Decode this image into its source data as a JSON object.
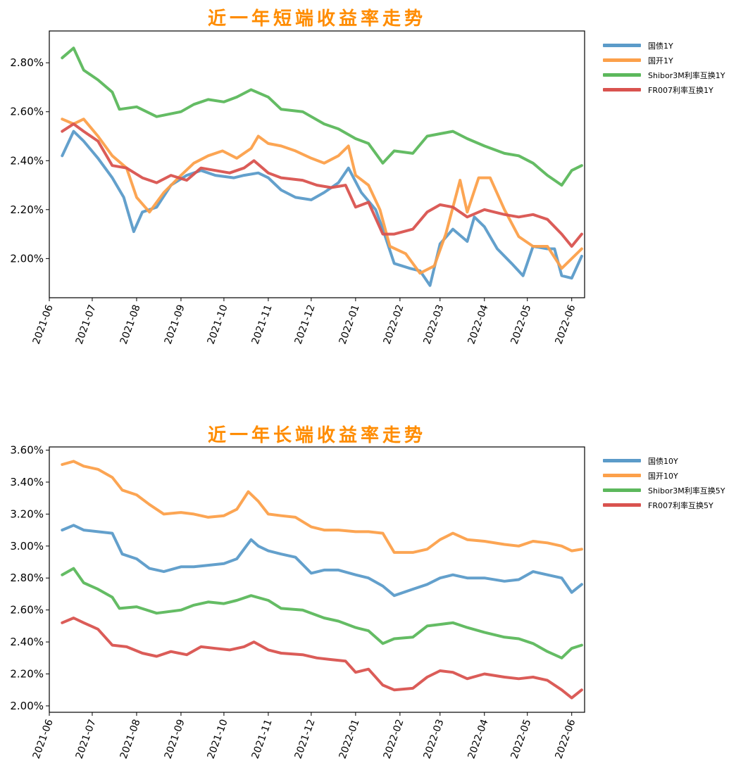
{
  "chart_data": [
    {
      "type": "line",
      "title": "近一年短端收益率走势",
      "x_tick_labels": [
        "2021-06",
        "2021-07",
        "2021-08",
        "2021-09",
        "2021-10",
        "2021-11",
        "2021-12",
        "2022-01",
        "2022-02",
        "2022-03",
        "2022-04",
        "2022-05",
        "2022-06"
      ],
      "x_range": [
        "2021-06-01",
        "2022-06-10"
      ],
      "y_tick_labels": [
        "2.00%",
        "2.20%",
        "2.40%",
        "2.60%",
        "2.80%"
      ],
      "y_ticks": [
        2.0,
        2.2,
        2.4,
        2.6,
        2.8
      ],
      "ylim": [
        1.84,
        2.93
      ],
      "legend_position": "right-top",
      "series": [
        {
          "name": "国债1Y",
          "color": "#5b9bc9",
          "x": [
            "2021-06-10",
            "2021-06-18",
            "2021-06-25",
            "2021-07-05",
            "2021-07-15",
            "2021-07-23",
            "2021-07-30",
            "2021-08-05",
            "2021-08-15",
            "2021-08-25",
            "2021-09-05",
            "2021-09-15",
            "2021-09-25",
            "2021-10-08",
            "2021-10-15",
            "2021-10-25",
            "2021-11-01",
            "2021-11-10",
            "2021-11-20",
            "2021-12-01",
            "2021-12-10",
            "2021-12-20",
            "2021-12-27",
            "2022-01-05",
            "2022-01-15",
            "2022-01-20",
            "2022-01-28",
            "2022-02-08",
            "2022-02-15",
            "2022-02-22",
            "2022-03-01",
            "2022-03-10",
            "2022-03-20",
            "2022-03-25",
            "2022-04-01",
            "2022-04-10",
            "2022-04-20",
            "2022-04-28",
            "2022-05-05",
            "2022-05-15",
            "2022-05-20",
            "2022-05-25",
            "2022-06-01",
            "2022-06-08"
          ],
          "values": [
            2.42,
            2.52,
            2.48,
            2.41,
            2.33,
            2.25,
            2.11,
            2.19,
            2.21,
            2.3,
            2.34,
            2.36,
            2.34,
            2.33,
            2.34,
            2.35,
            2.33,
            2.28,
            2.25,
            2.24,
            2.27,
            2.31,
            2.37,
            2.27,
            2.2,
            2.12,
            1.98,
            1.96,
            1.95,
            1.89,
            2.06,
            2.12,
            2.07,
            2.17,
            2.13,
            2.04,
            1.98,
            1.93,
            2.05,
            2.04,
            2.04,
            1.93,
            1.92,
            2.01
          ]
        },
        {
          "name": "国开1Y",
          "color": "#fca04a",
          "x": [
            "2021-06-10",
            "2021-06-18",
            "2021-06-25",
            "2021-07-05",
            "2021-07-15",
            "2021-07-25",
            "2021-08-01",
            "2021-08-10",
            "2021-08-20",
            "2021-09-01",
            "2021-09-10",
            "2021-09-20",
            "2021-09-30",
            "2021-10-10",
            "2021-10-20",
            "2021-10-25",
            "2021-11-01",
            "2021-11-10",
            "2021-11-20",
            "2021-12-01",
            "2021-12-10",
            "2021-12-20",
            "2021-12-27",
            "2022-01-01",
            "2022-01-10",
            "2022-01-18",
            "2022-01-25",
            "2022-02-05",
            "2022-02-15",
            "2022-02-25",
            "2022-03-05",
            "2022-03-15",
            "2022-03-20",
            "2022-03-28",
            "2022-04-05",
            "2022-04-15",
            "2022-04-25",
            "2022-05-05",
            "2022-05-15",
            "2022-05-25",
            "2022-06-01",
            "2022-06-08"
          ],
          "values": [
            2.57,
            2.55,
            2.57,
            2.5,
            2.42,
            2.37,
            2.25,
            2.19,
            2.27,
            2.34,
            2.39,
            2.42,
            2.44,
            2.41,
            2.45,
            2.5,
            2.47,
            2.46,
            2.44,
            2.41,
            2.39,
            2.42,
            2.46,
            2.34,
            2.3,
            2.2,
            2.05,
            2.02,
            1.94,
            1.97,
            2.1,
            2.32,
            2.19,
            2.33,
            2.33,
            2.2,
            2.09,
            2.05,
            2.05,
            1.96,
            2.0,
            2.04
          ]
        },
        {
          "name": "Shibor3M利率互换1Y",
          "color": "#5cb85c",
          "x": [
            "2021-06-10",
            "2021-06-18",
            "2021-06-25",
            "2021-07-05",
            "2021-07-15",
            "2021-07-20",
            "2021-08-01",
            "2021-08-15",
            "2021-09-01",
            "2021-09-10",
            "2021-09-20",
            "2021-10-01",
            "2021-10-10",
            "2021-10-20",
            "2021-11-01",
            "2021-11-10",
            "2021-11-25",
            "2021-12-10",
            "2021-12-20",
            "2022-01-01",
            "2022-01-10",
            "2022-01-20",
            "2022-01-28",
            "2022-02-10",
            "2022-02-20",
            "2022-03-01",
            "2022-03-10",
            "2022-03-20",
            "2022-04-01",
            "2022-04-15",
            "2022-04-25",
            "2022-05-05",
            "2022-05-15",
            "2022-05-25",
            "2022-06-01",
            "2022-06-08"
          ],
          "values": [
            2.82,
            2.86,
            2.77,
            2.73,
            2.68,
            2.61,
            2.62,
            2.58,
            2.6,
            2.63,
            2.65,
            2.64,
            2.66,
            2.69,
            2.66,
            2.61,
            2.6,
            2.55,
            2.53,
            2.49,
            2.47,
            2.39,
            2.44,
            2.43,
            2.5,
            2.51,
            2.52,
            2.49,
            2.46,
            2.43,
            2.42,
            2.39,
            2.34,
            2.3,
            2.36,
            2.38
          ]
        },
        {
          "name": "FR007利率互换1Y",
          "color": "#d9534f",
          "x": [
            "2021-06-10",
            "2021-06-18",
            "2021-06-25",
            "2021-07-05",
            "2021-07-15",
            "2021-07-25",
            "2021-08-05",
            "2021-08-15",
            "2021-08-25",
            "2021-09-05",
            "2021-09-15",
            "2021-09-25",
            "2021-10-05",
            "2021-10-15",
            "2021-10-22",
            "2021-11-01",
            "2021-11-10",
            "2021-11-25",
            "2021-12-05",
            "2021-12-15",
            "2021-12-25",
            "2022-01-01",
            "2022-01-10",
            "2022-01-20",
            "2022-01-28",
            "2022-02-10",
            "2022-02-20",
            "2022-03-01",
            "2022-03-10",
            "2022-03-20",
            "2022-04-01",
            "2022-04-15",
            "2022-04-25",
            "2022-05-05",
            "2022-05-15",
            "2022-05-25",
            "2022-06-01",
            "2022-06-08"
          ],
          "values": [
            2.52,
            2.55,
            2.52,
            2.48,
            2.38,
            2.37,
            2.33,
            2.31,
            2.34,
            2.32,
            2.37,
            2.36,
            2.35,
            2.37,
            2.4,
            2.35,
            2.33,
            2.32,
            2.3,
            2.29,
            2.3,
            2.21,
            2.23,
            2.1,
            2.1,
            2.12,
            2.19,
            2.22,
            2.21,
            2.17,
            2.2,
            2.18,
            2.17,
            2.18,
            2.16,
            2.1,
            2.05,
            2.1
          ]
        }
      ]
    },
    {
      "type": "line",
      "title": "近一年长端收益率走势",
      "x_tick_labels": [
        "2021-06",
        "2021-07",
        "2021-08",
        "2021-09",
        "2021-10",
        "2021-11",
        "2021-12",
        "2022-01",
        "2022-02",
        "2022-03",
        "2022-04",
        "2022-05",
        "2022-06"
      ],
      "x_range": [
        "2021-06-01",
        "2022-06-10"
      ],
      "y_tick_labels": [
        "2.00%",
        "2.20%",
        "2.40%",
        "2.60%",
        "2.80%",
        "3.00%",
        "3.20%",
        "3.40%",
        "3.60%"
      ],
      "y_ticks": [
        2.0,
        2.2,
        2.4,
        2.6,
        2.8,
        3.0,
        3.2,
        3.4,
        3.6
      ],
      "ylim": [
        1.96,
        3.62
      ],
      "legend_position": "right-top",
      "series": [
        {
          "name": "国债10Y",
          "color": "#5b9bc9",
          "x": [
            "2021-06-10",
            "2021-06-18",
            "2021-06-25",
            "2021-07-05",
            "2021-07-15",
            "2021-07-22",
            "2021-08-01",
            "2021-08-10",
            "2021-08-20",
            "2021-09-01",
            "2021-09-10",
            "2021-09-20",
            "2021-10-01",
            "2021-10-10",
            "2021-10-20",
            "2021-10-25",
            "2021-11-01",
            "2021-11-10",
            "2021-11-20",
            "2021-12-01",
            "2021-12-10",
            "2021-12-20",
            "2022-01-01",
            "2022-01-10",
            "2022-01-20",
            "2022-01-28",
            "2022-02-10",
            "2022-02-20",
            "2022-03-01",
            "2022-03-10",
            "2022-03-20",
            "2022-04-01",
            "2022-04-15",
            "2022-04-25",
            "2022-05-05",
            "2022-05-15",
            "2022-05-25",
            "2022-06-01",
            "2022-06-08"
          ],
          "values": [
            3.1,
            3.13,
            3.1,
            3.09,
            3.08,
            2.95,
            2.92,
            2.86,
            2.84,
            2.87,
            2.87,
            2.88,
            2.89,
            2.92,
            3.04,
            3.0,
            2.97,
            2.95,
            2.93,
            2.83,
            2.85,
            2.85,
            2.82,
            2.8,
            2.75,
            2.69,
            2.73,
            2.76,
            2.8,
            2.82,
            2.8,
            2.8,
            2.78,
            2.79,
            2.84,
            2.82,
            2.8,
            2.71,
            2.76
          ]
        },
        {
          "name": "国开10Y",
          "color": "#fca04a",
          "x": [
            "2021-06-10",
            "2021-06-18",
            "2021-06-25",
            "2021-07-05",
            "2021-07-15",
            "2021-07-22",
            "2021-08-01",
            "2021-08-10",
            "2021-08-20",
            "2021-09-01",
            "2021-09-10",
            "2021-09-20",
            "2021-10-01",
            "2021-10-10",
            "2021-10-18",
            "2021-10-25",
            "2021-11-01",
            "2021-11-10",
            "2021-11-20",
            "2021-12-01",
            "2021-12-10",
            "2021-12-20",
            "2022-01-01",
            "2022-01-10",
            "2022-01-20",
            "2022-01-28",
            "2022-02-10",
            "2022-02-20",
            "2022-03-01",
            "2022-03-10",
            "2022-03-20",
            "2022-04-01",
            "2022-04-15",
            "2022-04-25",
            "2022-05-05",
            "2022-05-15",
            "2022-05-25",
            "2022-06-01",
            "2022-06-08"
          ],
          "values": [
            3.51,
            3.53,
            3.5,
            3.48,
            3.43,
            3.35,
            3.32,
            3.26,
            3.2,
            3.21,
            3.2,
            3.18,
            3.19,
            3.23,
            3.34,
            3.28,
            3.2,
            3.19,
            3.18,
            3.12,
            3.1,
            3.1,
            3.09,
            3.09,
            3.08,
            2.96,
            2.96,
            2.98,
            3.04,
            3.08,
            3.04,
            3.03,
            3.01,
            3.0,
            3.03,
            3.02,
            3.0,
            2.97,
            2.98
          ]
        },
        {
          "name": "Shibor3M利率互换5Y",
          "color": "#5cb85c",
          "x": [
            "2021-06-10",
            "2021-06-18",
            "2021-06-25",
            "2021-07-05",
            "2021-07-15",
            "2021-07-20",
            "2021-08-01",
            "2021-08-15",
            "2021-09-01",
            "2021-09-10",
            "2021-09-20",
            "2021-10-01",
            "2021-10-10",
            "2021-10-20",
            "2021-11-01",
            "2021-11-10",
            "2021-11-25",
            "2021-12-10",
            "2021-12-20",
            "2022-01-01",
            "2022-01-10",
            "2022-01-20",
            "2022-01-28",
            "2022-02-10",
            "2022-02-20",
            "2022-03-01",
            "2022-03-10",
            "2022-03-20",
            "2022-04-01",
            "2022-04-15",
            "2022-04-25",
            "2022-05-05",
            "2022-05-15",
            "2022-05-25",
            "2022-06-01",
            "2022-06-08"
          ],
          "values": [
            2.82,
            2.86,
            2.77,
            2.73,
            2.68,
            2.61,
            2.62,
            2.58,
            2.6,
            2.63,
            2.65,
            2.64,
            2.66,
            2.69,
            2.66,
            2.61,
            2.6,
            2.55,
            2.53,
            2.49,
            2.47,
            2.39,
            2.42,
            2.43,
            2.5,
            2.51,
            2.52,
            2.49,
            2.46,
            2.43,
            2.42,
            2.39,
            2.34,
            2.3,
            2.36,
            2.38
          ]
        },
        {
          "name": "FR007利率互换5Y",
          "color": "#d9534f",
          "x": [
            "2021-06-10",
            "2021-06-18",
            "2021-06-25",
            "2021-07-05",
            "2021-07-15",
            "2021-07-25",
            "2021-08-05",
            "2021-08-15",
            "2021-08-25",
            "2021-09-05",
            "2021-09-15",
            "2021-09-25",
            "2021-10-05",
            "2021-10-15",
            "2021-10-22",
            "2021-11-01",
            "2021-11-10",
            "2021-11-25",
            "2021-12-05",
            "2021-12-15",
            "2021-12-25",
            "2022-01-01",
            "2022-01-10",
            "2022-01-20",
            "2022-01-28",
            "2022-02-10",
            "2022-02-20",
            "2022-03-01",
            "2022-03-10",
            "2022-03-20",
            "2022-04-01",
            "2022-04-15",
            "2022-04-25",
            "2022-05-05",
            "2022-05-15",
            "2022-05-25",
            "2022-06-01",
            "2022-06-08"
          ],
          "values": [
            2.52,
            2.55,
            2.52,
            2.48,
            2.38,
            2.37,
            2.33,
            2.31,
            2.34,
            2.32,
            2.37,
            2.36,
            2.35,
            2.37,
            2.4,
            2.35,
            2.33,
            2.32,
            2.3,
            2.29,
            2.28,
            2.21,
            2.23,
            2.13,
            2.1,
            2.11,
            2.18,
            2.22,
            2.21,
            2.17,
            2.2,
            2.18,
            2.17,
            2.18,
            2.16,
            2.1,
            2.05,
            2.1
          ]
        }
      ]
    }
  ]
}
